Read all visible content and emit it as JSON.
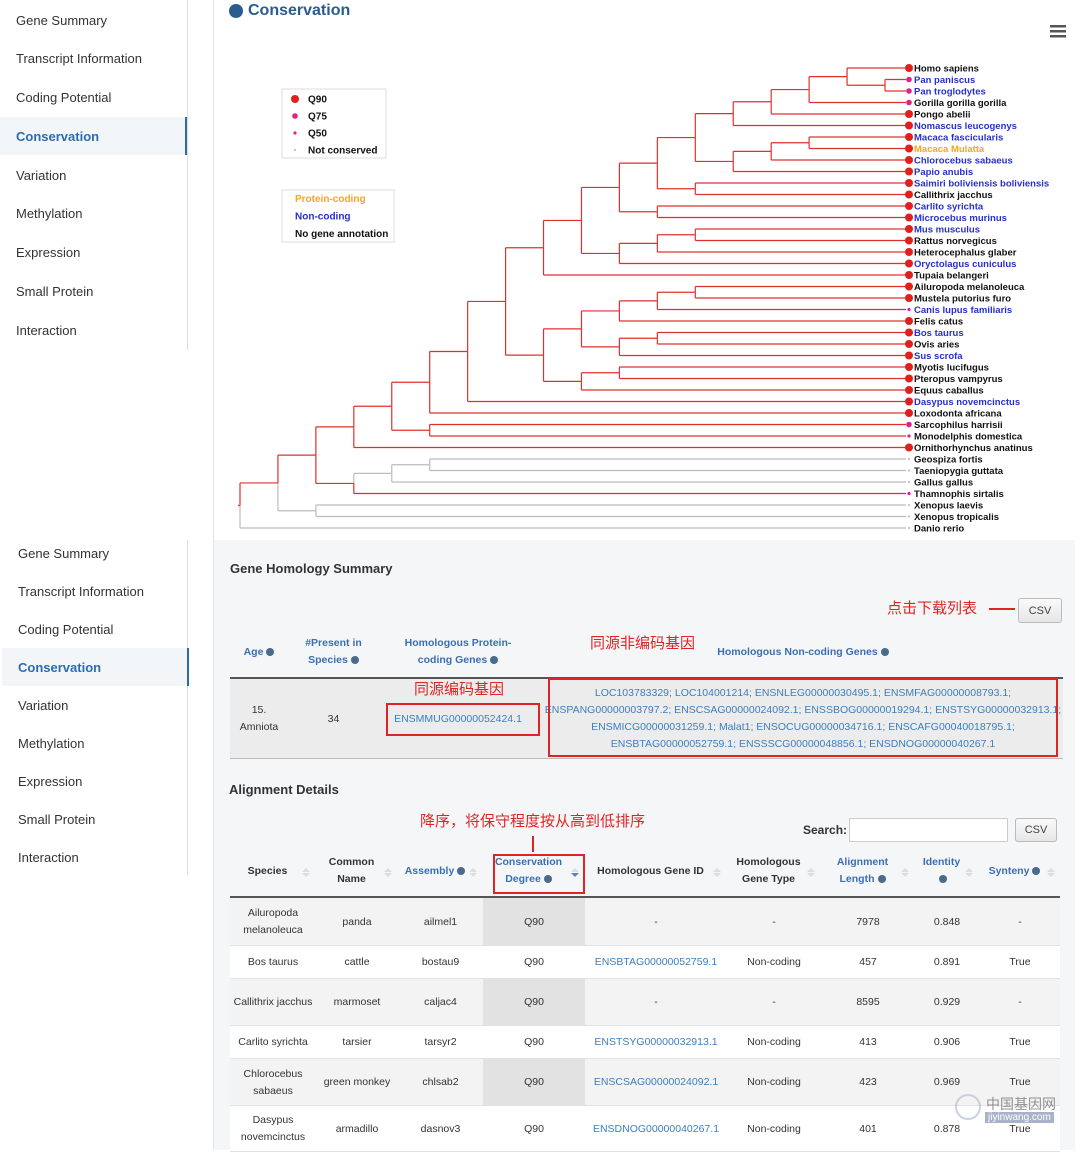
{
  "sidebar_top": {
    "items": [
      "Gene Summary",
      "Transcript Information",
      "Coding Potential",
      "Conservation",
      "Variation",
      "Methylation",
      "Expression",
      "Small Protein",
      "Interaction"
    ],
    "active": 3
  },
  "sidebar_bottom": {
    "items": [
      "Gene Summary",
      "Transcript Information",
      "Coding Potential",
      "Conservation",
      "Variation",
      "Methylation",
      "Expression",
      "Small Protein",
      "Interaction"
    ],
    "active": 3
  },
  "section_title": "Conservation",
  "tree": {
    "legend_levels": [
      "Q90",
      "Q75",
      "Q50",
      "Not conserved"
    ],
    "legend_types": [
      "Protein-coding",
      "Non-coding",
      "No gene annotation"
    ],
    "species": [
      {
        "name": "Homo sapiens",
        "level": 0,
        "type": 2
      },
      {
        "name": "Pan paniscus",
        "level": 1,
        "type": 1
      },
      {
        "name": "Pan troglodytes",
        "level": 1,
        "type": 1
      },
      {
        "name": "Gorilla gorilla gorilla",
        "level": 1,
        "type": 2
      },
      {
        "name": "Pongo abelii",
        "level": 0,
        "type": 2
      },
      {
        "name": "Nomascus leucogenys",
        "level": 0,
        "type": 1
      },
      {
        "name": "Macaca fascicularis",
        "level": 0,
        "type": 1
      },
      {
        "name": "Macaca Mulatta",
        "level": 0,
        "type": 0
      },
      {
        "name": "Chlorocebus sabaeus",
        "level": 0,
        "type": 1
      },
      {
        "name": "Papio anubis",
        "level": 0,
        "type": 1
      },
      {
        "name": "Saimiri boliviensis boliviensis",
        "level": 0,
        "type": 1
      },
      {
        "name": "Callithrix jacchus",
        "level": 0,
        "type": 2
      },
      {
        "name": "Carlito syrichta",
        "level": 0,
        "type": 1
      },
      {
        "name": "Microcebus murinus",
        "level": 0,
        "type": 1
      },
      {
        "name": "Mus musculus",
        "level": 0,
        "type": 1
      },
      {
        "name": "Rattus norvegicus",
        "level": 0,
        "type": 2
      },
      {
        "name": "Heterocephalus glaber",
        "level": 0,
        "type": 2
      },
      {
        "name": "Oryctolagus cuniculus",
        "level": 0,
        "type": 1
      },
      {
        "name": "Tupaia belangeri",
        "level": 0,
        "type": 2
      },
      {
        "name": "Ailuropoda melanoleuca",
        "level": 0,
        "type": 2
      },
      {
        "name": "Mustela putorius furo",
        "level": 0,
        "type": 2
      },
      {
        "name": "Canis lupus familiaris",
        "level": 2,
        "type": 1
      },
      {
        "name": "Felis catus",
        "level": 0,
        "type": 2
      },
      {
        "name": "Bos taurus",
        "level": 0,
        "type": 1
      },
      {
        "name": "Ovis aries",
        "level": 0,
        "type": 2
      },
      {
        "name": "Sus scrofa",
        "level": 0,
        "type": 1
      },
      {
        "name": "Myotis lucifugus",
        "level": 0,
        "type": 2
      },
      {
        "name": "Pteropus vampyrus",
        "level": 0,
        "type": 2
      },
      {
        "name": "Equus caballus",
        "level": 0,
        "type": 2
      },
      {
        "name": "Dasypus novemcinctus",
        "level": 0,
        "type": 1
      },
      {
        "name": "Loxodonta africana",
        "level": 0,
        "type": 2
      },
      {
        "name": "Sarcophilus harrisii",
        "level": 1,
        "type": 2
      },
      {
        "name": "Monodelphis domestica",
        "level": 2,
        "type": 2
      },
      {
        "name": "Ornithorhynchus anatinus",
        "level": 0,
        "type": 2
      },
      {
        "name": "Geospiza fortis",
        "level": 3,
        "type": 2
      },
      {
        "name": "Taeniopygia guttata",
        "level": 3,
        "type": 2
      },
      {
        "name": "Gallus gallus",
        "level": 3,
        "type": 2
      },
      {
        "name": "Thamnophis sirtalis",
        "level": 2,
        "type": 2
      },
      {
        "name": "Xenopus laevis",
        "level": 3,
        "type": 2
      },
      {
        "name": "Xenopus tropicalis",
        "level": 3,
        "type": 2
      },
      {
        "name": "Danio rerio",
        "level": 3,
        "type": 2
      }
    ]
  },
  "homology_summary": {
    "title": "Gene Homology Summary",
    "csv": "CSV",
    "headers": [
      "Age",
      "#Present in Species",
      "Homologous Protein-coding Genes",
      "Homologous Non-coding Genes"
    ],
    "rows": [
      [
        "15. Amniota",
        "34",
        "ENSMMUG00000052424.1",
        "LOC103783329; LOC104001214; ENSNLEG00000030495.1; ENSMFAG00000008793.1; ENSPANG00000003797.2; ENSCSAG00000024092.1; ENSSBOG00000019294.1; ENSTSYG00000032913.1; ENSMICG00000031259.1; Malat1; ENSOCUG00000034716.1; ENSCAFG00040018795.1; ENSBTAG00000052759.1; ENSSSCG00000048856.1; ENSDNOG00000040267.1"
      ]
    ]
  },
  "annotations": {
    "download": "点击下载列表",
    "coding": "同源编码基因",
    "noncoding": "同源非编码基因",
    "sort": "降序，将保守程度按从高到低排序"
  },
  "alignment": {
    "title": "Alignment Details",
    "search": "Search:",
    "csv": "CSV",
    "headers": [
      "Species",
      "Common Name",
      "Assembly",
      "Conservation Degree",
      "Homologous Gene ID",
      "Homologous Gene Type",
      "Alignment Length",
      "Identity",
      "Synteny"
    ],
    "rows": [
      [
        "Ailuropoda melanoleuca",
        "panda",
        "ailmel1",
        "Q90",
        "-",
        "-",
        7978,
        0.848,
        "-"
      ],
      [
        "Bos taurus",
        "cattle",
        "bostau9",
        "Q90",
        "ENSBTAG00000052759.1",
        "Non-coding",
        457,
        0.891,
        "True"
      ],
      [
        "Callithrix jacchus",
        "marmoset",
        "caljac4",
        "Q90",
        "-",
        "-",
        8595,
        0.929,
        "-"
      ],
      [
        "Carlito syrichta",
        "tarsier",
        "tarsyr2",
        "Q90",
        "ENSTSYG00000032913.1",
        "Non-coding",
        413,
        0.906,
        "True"
      ],
      [
        "Chlorocebus sabaeus",
        "green monkey",
        "chlsab2",
        "Q90",
        "ENSCSAG00000024092.1",
        "Non-coding",
        423,
        0.969,
        "True"
      ],
      [
        "Dasypus novemcinctus",
        "armadillo",
        "dasnov3",
        "Q90",
        "ENSDNOG00000040267.1",
        "Non-coding",
        401,
        0.878,
        "True"
      ]
    ]
  },
  "watermark": {
    "cn": "中国基因网",
    "url": "jiyinwang.com"
  }
}
